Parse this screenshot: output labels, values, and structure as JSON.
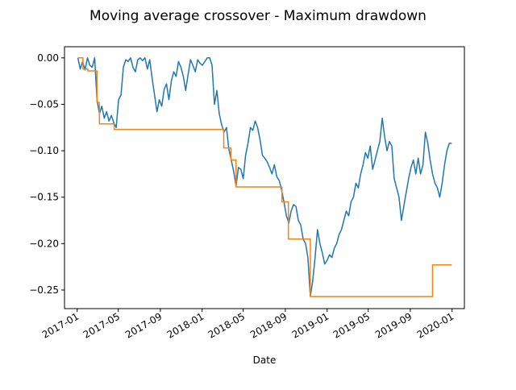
{
  "chart_data": {
    "type": "line",
    "title": "Moving average crossover - Maximum drawdown",
    "xlabel": "Date",
    "ylabel": "",
    "x_type": "date",
    "xlim": [
      "2016-11-25",
      "2020-02-06"
    ],
    "ylim": [
      -0.27,
      0.012
    ],
    "x_ticks": [
      "2017-01",
      "2017-05",
      "2017-09",
      "2018-01",
      "2018-05",
      "2018-09",
      "2019-01",
      "2019-05",
      "2019-09",
      "2020-01"
    ],
    "y_ticks": [
      0.0,
      -0.05,
      -0.1,
      -0.15,
      -0.2,
      -0.25
    ],
    "y_tick_labels": [
      "0.00",
      "−0.05",
      "−0.10",
      "−0.15",
      "−0.20",
      "−0.25"
    ],
    "grid": false,
    "legend": "none",
    "series": [
      {
        "color": "#1f77b4",
        "style": "step-noisy",
        "points": [
          [
            "2017-01-03",
            0.0
          ],
          [
            "2017-01-10",
            -0.012
          ],
          [
            "2017-01-17",
            -0.004
          ],
          [
            "2017-01-24",
            -0.013
          ],
          [
            "2017-01-31",
            0.0
          ],
          [
            "2017-02-07",
            -0.008
          ],
          [
            "2017-02-14",
            -0.01
          ],
          [
            "2017-02-21",
            0.0
          ],
          [
            "2017-02-28",
            -0.045
          ],
          [
            "2017-03-07",
            -0.06
          ],
          [
            "2017-03-14",
            -0.052
          ],
          [
            "2017-03-21",
            -0.065
          ],
          [
            "2017-03-28",
            -0.058
          ],
          [
            "2017-04-04",
            -0.068
          ],
          [
            "2017-04-11",
            -0.062
          ],
          [
            "2017-04-18",
            -0.07
          ],
          [
            "2017-04-25",
            -0.075
          ],
          [
            "2017-05-02",
            -0.045
          ],
          [
            "2017-05-09",
            -0.04
          ],
          [
            "2017-05-16",
            -0.01
          ],
          [
            "2017-05-23",
            -0.002
          ],
          [
            "2017-05-30",
            -0.004
          ],
          [
            "2017-06-06",
            0.0
          ],
          [
            "2017-06-13",
            -0.01
          ],
          [
            "2017-06-20",
            -0.015
          ],
          [
            "2017-06-27",
            -0.002
          ],
          [
            "2017-07-04",
            0.0
          ],
          [
            "2017-07-11",
            -0.003
          ],
          [
            "2017-07-18",
            0.0
          ],
          [
            "2017-07-25",
            -0.012
          ],
          [
            "2017-08-01",
            -0.002
          ],
          [
            "2017-08-08",
            -0.022
          ],
          [
            "2017-08-15",
            -0.04
          ],
          [
            "2017-08-22",
            -0.058
          ],
          [
            "2017-08-29",
            -0.045
          ],
          [
            "2017-09-05",
            -0.052
          ],
          [
            "2017-09-12",
            -0.034
          ],
          [
            "2017-09-19",
            -0.028
          ],
          [
            "2017-09-26",
            -0.045
          ],
          [
            "2017-10-03",
            -0.025
          ],
          [
            "2017-10-10",
            -0.015
          ],
          [
            "2017-10-17",
            -0.02
          ],
          [
            "2017-10-24",
            -0.004
          ],
          [
            "2017-10-31",
            -0.01
          ],
          [
            "2017-11-07",
            -0.02
          ],
          [
            "2017-11-14",
            -0.035
          ],
          [
            "2017-11-21",
            -0.018
          ],
          [
            "2017-11-28",
            -0.002
          ],
          [
            "2017-12-05",
            -0.008
          ],
          [
            "2017-12-12",
            -0.015
          ],
          [
            "2017-12-19",
            -0.002
          ],
          [
            "2017-12-26",
            -0.006
          ],
          [
            "2018-01-02",
            -0.008
          ],
          [
            "2018-01-09",
            -0.004
          ],
          [
            "2018-01-16",
            0.0
          ],
          [
            "2018-01-23",
            0.0
          ],
          [
            "2018-01-30",
            -0.008
          ],
          [
            "2018-02-06",
            -0.05
          ],
          [
            "2018-02-13",
            -0.035
          ],
          [
            "2018-02-20",
            -0.06
          ],
          [
            "2018-02-27",
            -0.072
          ],
          [
            "2018-03-06",
            -0.08
          ],
          [
            "2018-03-13",
            -0.075
          ],
          [
            "2018-03-20",
            -0.098
          ],
          [
            "2018-03-27",
            -0.11
          ],
          [
            "2018-04-03",
            -0.122
          ],
          [
            "2018-04-10",
            -0.138
          ],
          [
            "2018-04-17",
            -0.118
          ],
          [
            "2018-04-24",
            -0.12
          ],
          [
            "2018-05-01",
            -0.13
          ],
          [
            "2018-05-08",
            -0.105
          ],
          [
            "2018-05-15",
            -0.092
          ],
          [
            "2018-05-22",
            -0.075
          ],
          [
            "2018-05-29",
            -0.078
          ],
          [
            "2018-06-05",
            -0.068
          ],
          [
            "2018-06-12",
            -0.075
          ],
          [
            "2018-06-19",
            -0.088
          ],
          [
            "2018-06-26",
            -0.105
          ],
          [
            "2018-07-03",
            -0.108
          ],
          [
            "2018-07-10",
            -0.112
          ],
          [
            "2018-07-17",
            -0.118
          ],
          [
            "2018-07-24",
            -0.125
          ],
          [
            "2018-07-31",
            -0.115
          ],
          [
            "2018-08-07",
            -0.128
          ],
          [
            "2018-08-14",
            -0.132
          ],
          [
            "2018-08-21",
            -0.142
          ],
          [
            "2018-08-28",
            -0.155
          ],
          [
            "2018-09-04",
            -0.17
          ],
          [
            "2018-09-11",
            -0.178
          ],
          [
            "2018-09-18",
            -0.165
          ],
          [
            "2018-09-25",
            -0.158
          ],
          [
            "2018-10-02",
            -0.16
          ],
          [
            "2018-10-09",
            -0.175
          ],
          [
            "2018-10-16",
            -0.18
          ],
          [
            "2018-10-23",
            -0.195
          ],
          [
            "2018-10-30",
            -0.2
          ],
          [
            "2018-11-06",
            -0.215
          ],
          [
            "2018-11-13",
            -0.257
          ],
          [
            "2018-11-20",
            -0.24
          ],
          [
            "2018-11-27",
            -0.215
          ],
          [
            "2018-12-04",
            -0.185
          ],
          [
            "2018-12-11",
            -0.2
          ],
          [
            "2018-12-18",
            -0.21
          ],
          [
            "2018-12-25",
            -0.222
          ],
          [
            "2019-01-01",
            -0.218
          ],
          [
            "2019-01-08",
            -0.212
          ],
          [
            "2019-01-15",
            -0.215
          ],
          [
            "2019-01-22",
            -0.205
          ],
          [
            "2019-01-29",
            -0.2
          ],
          [
            "2019-02-05",
            -0.19
          ],
          [
            "2019-02-12",
            -0.185
          ],
          [
            "2019-02-19",
            -0.175
          ],
          [
            "2019-02-26",
            -0.165
          ],
          [
            "2019-03-05",
            -0.17
          ],
          [
            "2019-03-12",
            -0.155
          ],
          [
            "2019-03-19",
            -0.15
          ],
          [
            "2019-03-26",
            -0.135
          ],
          [
            "2019-04-02",
            -0.14
          ],
          [
            "2019-04-09",
            -0.125
          ],
          [
            "2019-04-16",
            -0.115
          ],
          [
            "2019-04-23",
            -0.102
          ],
          [
            "2019-04-30",
            -0.108
          ],
          [
            "2019-05-07",
            -0.095
          ],
          [
            "2019-05-14",
            -0.12
          ],
          [
            "2019-05-21",
            -0.11
          ],
          [
            "2019-05-28",
            -0.1
          ],
          [
            "2019-06-04",
            -0.09
          ],
          [
            "2019-06-11",
            -0.065
          ],
          [
            "2019-06-18",
            -0.085
          ],
          [
            "2019-06-25",
            -0.1
          ],
          [
            "2019-07-02",
            -0.09
          ],
          [
            "2019-07-09",
            -0.095
          ],
          [
            "2019-07-16",
            -0.13
          ],
          [
            "2019-07-23",
            -0.14
          ],
          [
            "2019-07-30",
            -0.15
          ],
          [
            "2019-08-06",
            -0.175
          ],
          [
            "2019-08-13",
            -0.16
          ],
          [
            "2019-08-20",
            -0.145
          ],
          [
            "2019-08-27",
            -0.13
          ],
          [
            "2019-09-03",
            -0.118
          ],
          [
            "2019-09-10",
            -0.11
          ],
          [
            "2019-09-17",
            -0.125
          ],
          [
            "2019-09-24",
            -0.108
          ],
          [
            "2019-10-01",
            -0.125
          ],
          [
            "2019-10-08",
            -0.115
          ],
          [
            "2019-10-15",
            -0.08
          ],
          [
            "2019-10-22",
            -0.092
          ],
          [
            "2019-10-29",
            -0.11
          ],
          [
            "2019-11-05",
            -0.125
          ],
          [
            "2019-11-12",
            -0.135
          ],
          [
            "2019-11-19",
            -0.14
          ],
          [
            "2019-11-26",
            -0.15
          ],
          [
            "2019-12-03",
            -0.135
          ],
          [
            "2019-12-10",
            -0.115
          ],
          [
            "2019-12-17",
            -0.1
          ],
          [
            "2019-12-24",
            -0.092
          ],
          [
            "2019-12-31",
            -0.092
          ]
        ]
      },
      {
        "color": "#ff7f0e",
        "style": "step",
        "points": [
          [
            "2017-01-03",
            0.0
          ],
          [
            "2017-01-18",
            -0.012
          ],
          [
            "2017-02-01",
            -0.014
          ],
          [
            "2017-02-28",
            -0.048
          ],
          [
            "2017-03-07",
            -0.071
          ],
          [
            "2017-04-19",
            -0.077
          ],
          [
            "2018-03-05",
            -0.097
          ],
          [
            "2018-03-26",
            -0.11
          ],
          [
            "2018-04-10",
            -0.139
          ],
          [
            "2018-08-22",
            -0.155
          ],
          [
            "2018-09-10",
            -0.195
          ],
          [
            "2018-11-13",
            -0.257
          ],
          [
            "2019-11-05",
            -0.223
          ],
          [
            "2019-12-31",
            -0.223
          ]
        ]
      }
    ]
  }
}
